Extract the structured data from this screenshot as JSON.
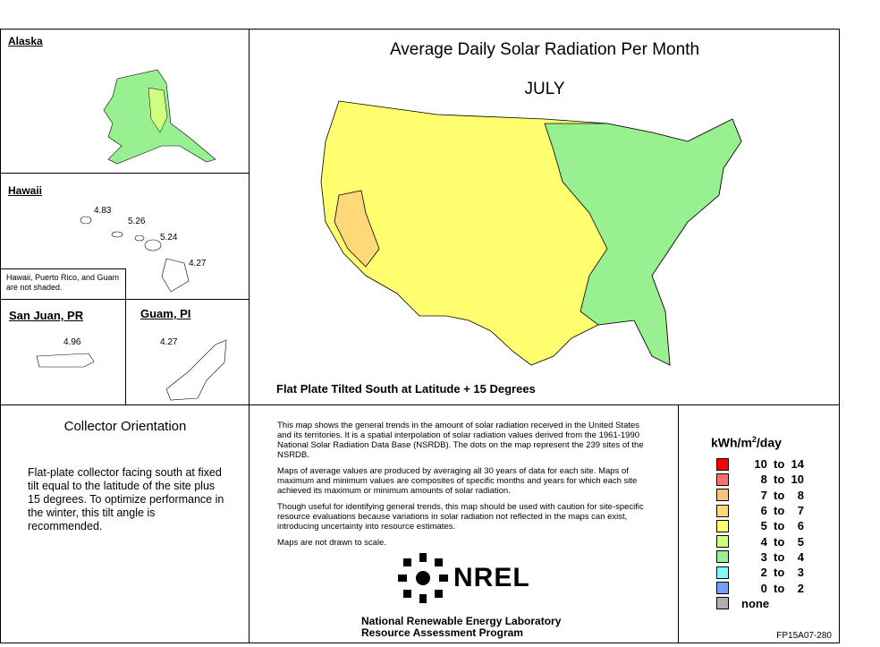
{
  "title": "Average Daily Solar Radiation Per Month",
  "month": "JULY",
  "subtitle": "Flat Plate Tilted South at Latitude + 15 Degrees",
  "insets": {
    "alaska": {
      "label": "Alaska"
    },
    "hawaii": {
      "label": "Hawaii",
      "values": [
        "4.83",
        "5.26",
        "5.24",
        "4.27"
      ],
      "note": "Hawaii, Puerto Rico, and Guam are not shaded."
    },
    "san_juan": {
      "label": "San Juan, PR",
      "value": "4.96"
    },
    "guam": {
      "label": "Guam, PI",
      "value": "4.27"
    }
  },
  "collector": {
    "heading": "Collector Orientation",
    "text": "Flat-plate collector facing south at fixed tilt equal to the latitude of the site plus 15 degrees. To optimize performance in the winter, this tilt angle is recommended."
  },
  "description": [
    "This map shows the general trends in the amount of solar radiation received in the United States and its territories.  It is a spatial interpolation of solar radiation values derived from the 1961-1990 National Solar Radiation Data Base (NSRDB).  The dots on the map represent the 239 sites of the NSRDB.",
    "Maps of average values are produced by averaging all 30 years of data for each site. Maps of maximum and minimum values are composites of specific months and years for which each site achieved its maximum or minimum amounts of solar radiation.",
    "Though useful for identifying general trends, this map should be used with caution for site-specific resource evaluations because variations in solar radiation not reflected in the maps can exist, introducing uncertainty into resource estimates.",
    "Maps are not drawn to scale."
  ],
  "logo": {
    "text": "NREL",
    "org_line1": "National Renewable Energy Laboratory",
    "org_line2": "Resource Assessment Program"
  },
  "legend": {
    "unit_prefix": "kWh/m",
    "unit_sup": "2",
    "unit_suffix": "/day",
    "items": [
      {
        "label": "10  to  14",
        "color": "#ff0000"
      },
      {
        "label": "8  to  10",
        "color": "#ff7070"
      },
      {
        "label": "7  to    8",
        "color": "#ffc080"
      },
      {
        "label": "6  to    7",
        "color": "#ffd878"
      },
      {
        "label": "5  to    6",
        "color": "#ffff70"
      },
      {
        "label": "4  to    5",
        "color": "#d0ff80"
      },
      {
        "label": "3  to    4",
        "color": "#98f090"
      },
      {
        "label": "2  to    3",
        "color": "#80ffff"
      },
      {
        "label": "0  to    2",
        "color": "#70a0ff"
      },
      {
        "label": "none",
        "color": "#b0b0b0"
      }
    ]
  },
  "code": "FP15A07-280"
}
